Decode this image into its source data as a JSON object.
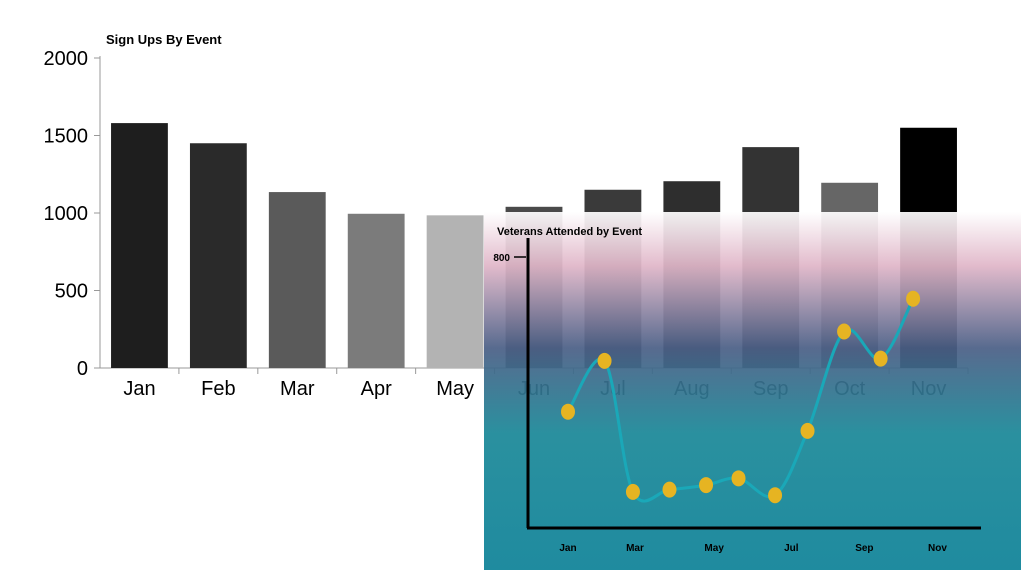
{
  "charts": {
    "signups": {
      "type": "bar",
      "title": "Sign Ups By Event",
      "categories": [
        "Jan",
        "Feb",
        "Mar",
        "Apr",
        "May",
        "Jun",
        "Jul",
        "Aug",
        "Sep",
        "Oct",
        "Nov"
      ],
      "values": [
        1580,
        1450,
        1135,
        995,
        985,
        1040,
        1150,
        1205,
        1425,
        1195,
        1550
      ],
      "bar_colors": [
        "#1e1e1e",
        "#2a2a2a",
        "#5a5a5a",
        "#7b7b7b",
        "#b3b3b3",
        "#4a4a4a",
        "#3a3a3a",
        "#2e2e2e",
        "#333333",
        "#666666",
        "#000000"
      ],
      "yticks": [
        0,
        500,
        1000,
        1500,
        2000
      ],
      "ylim": [
        0,
        2000
      ],
      "grid": false
    },
    "veterans": {
      "type": "line",
      "title": "Veterans Attended by Event",
      "x_labels": [
        "Jan",
        "Mar",
        "May",
        "Jul",
        "Sep",
        "Nov"
      ],
      "ytick_label": "800",
      "ylim": [
        -400,
        800
      ],
      "points": [
        {
          "x": 1.0,
          "y": 115
        },
        {
          "x": 1.9,
          "y": 340
        },
        {
          "x": 2.6,
          "y": -240
        },
        {
          "x": 3.5,
          "y": -230
        },
        {
          "x": 4.4,
          "y": -210
        },
        {
          "x": 5.2,
          "y": -180
        },
        {
          "x": 6.1,
          "y": -255
        },
        {
          "x": 6.9,
          "y": 30
        },
        {
          "x": 7.8,
          "y": 470
        },
        {
          "x": 8.7,
          "y": 350
        },
        {
          "x": 9.5,
          "y": 615
        }
      ],
      "line_color": "#1aa8b8",
      "marker_color": "#e6b422",
      "background_gradient": [
        "#ffffff",
        "#e0b6c8",
        "#4b5f86",
        "#1a8898",
        "#0e8298"
      ]
    }
  }
}
